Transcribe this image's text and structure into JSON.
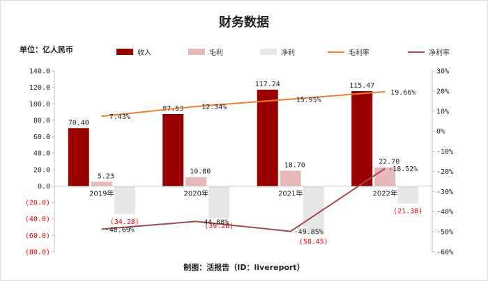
{
  "title": "财务数据",
  "unit_label": "单位：亿人民币",
  "footer": "制图：活报告（ID：livereport）",
  "legend": [
    {
      "label": "收入",
      "kind": "bar",
      "color": "#990000"
    },
    {
      "label": "毛利",
      "kind": "bar",
      "color": "#e6b8b7"
    },
    {
      "label": "净利",
      "kind": "bar",
      "color": "#e7e6e6"
    },
    {
      "label": "毛利率",
      "kind": "line",
      "color": "#ed7d31"
    },
    {
      "label": "净利率",
      "kind": "line",
      "color": "#9e4a4a"
    }
  ],
  "chart_data": {
    "type": "bar",
    "categories": [
      "2019年",
      "2020年",
      "2021年",
      "2022年"
    ],
    "y_left": {
      "min": -80,
      "max": 140,
      "step": 20,
      "ticks": [
        "140.0",
        "120.0",
        "100.0",
        "80.0",
        "60.0",
        "40.0",
        "20.0",
        "0.0",
        "(20.0)",
        "(40.0)",
        "(60.0)",
        "(80.0)"
      ]
    },
    "y_right": {
      "min": -60,
      "max": 30,
      "step": 10,
      "ticks": [
        "30%",
        "20%",
        "10%",
        "0%",
        "-10%",
        "-20%",
        "-30%",
        "-40%",
        "-50%",
        "-60%"
      ]
    },
    "series": [
      {
        "name": "收入",
        "kind": "bar",
        "color": "#990000",
        "values": [
          70.4,
          87.53,
          117.24,
          115.47
        ],
        "labels": [
          "70.40",
          "87.53",
          "117.24",
          "115.47"
        ]
      },
      {
        "name": "毛利",
        "kind": "bar",
        "color": "#e6b8b7",
        "values": [
          5.23,
          10.8,
          18.7,
          22.7
        ],
        "labels": [
          "5.23",
          "10.80",
          "18.70",
          "22.70"
        ]
      },
      {
        "name": "净利",
        "kind": "bar",
        "color": "#e7e6e6",
        "values": [
          -34.28,
          -39.28,
          -58.45,
          -21.38
        ],
        "labels": [
          "(34.28)",
          "(39.28)",
          "(58.45)",
          "(21.38)"
        ]
      },
      {
        "name": "毛利率",
        "kind": "line",
        "axis": "right",
        "color": "#ed7d31",
        "values": [
          7.43,
          12.34,
          15.95,
          19.66
        ],
        "labels": [
          "7.43%",
          "12.34%",
          "15.95%",
          "19.66%"
        ]
      },
      {
        "name": "净利率",
        "kind": "line",
        "axis": "right",
        "color": "#9e4a4a",
        "values": [
          -48.69,
          -44.88,
          -49.85,
          -18.52
        ],
        "labels": [
          "-48.69%",
          "-44.88%",
          "-49.85%",
          "-18.52%"
        ]
      }
    ],
    "negative_label_color": "#ff0000"
  }
}
